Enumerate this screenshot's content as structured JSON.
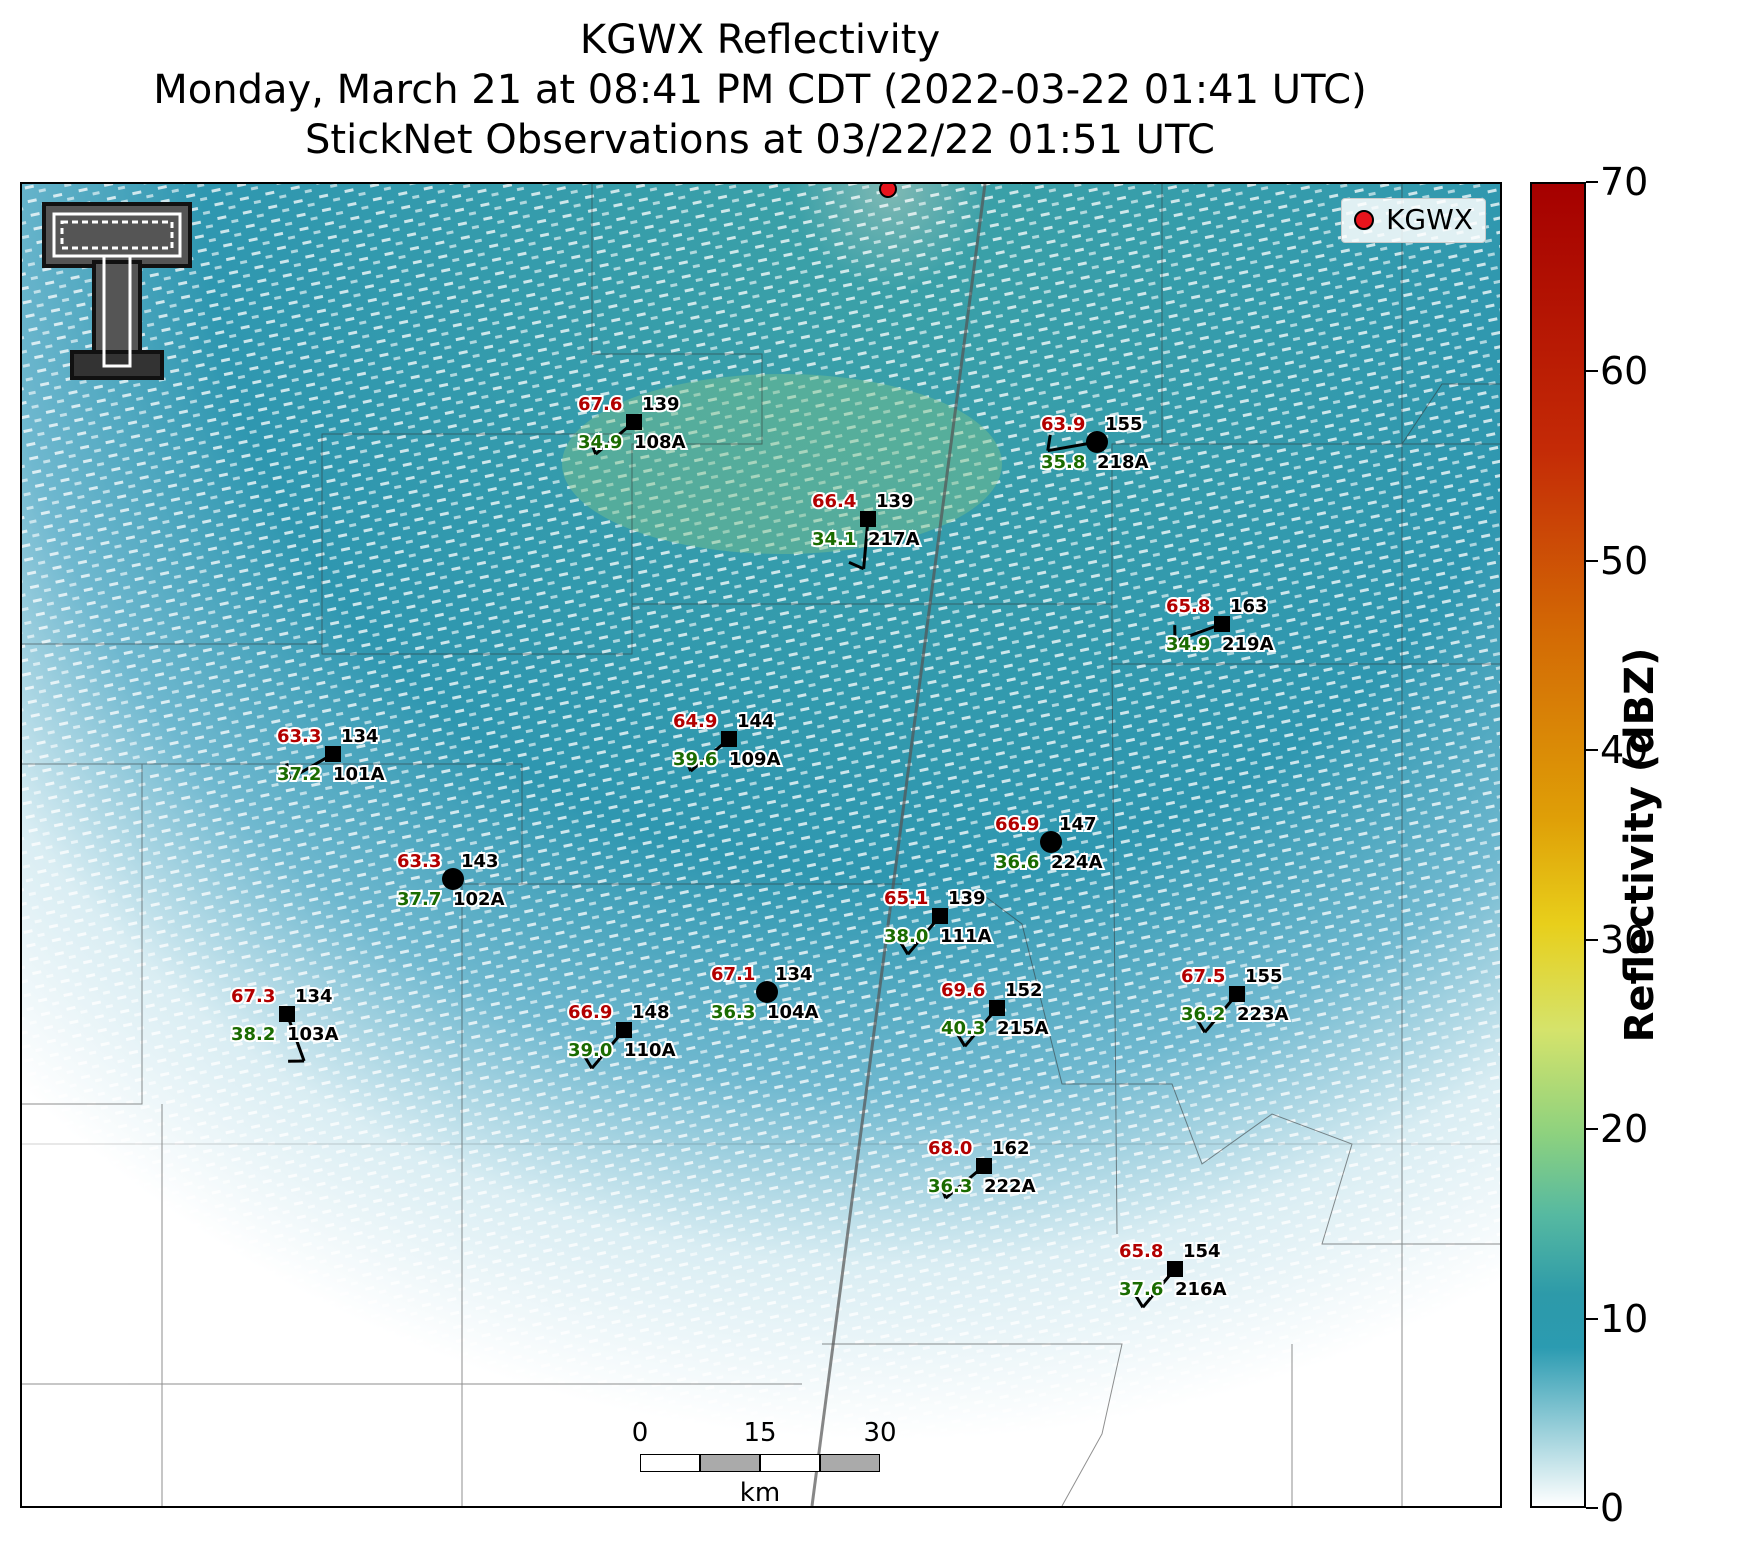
{
  "title": {
    "line1": "KGWX Reflectivity",
    "line2": "Monday, March 21 at 08:41 PM CDT (2022-03-22 01:41 UTC)",
    "line3": "StickNet Observations at 03/22/22 01:51 UTC"
  },
  "legend": {
    "label": "KGWX",
    "marker_color": "#e8141c"
  },
  "colorbar": {
    "label": "Reflectivity (dBZ)",
    "ticks": [
      "0",
      "10",
      "20",
      "30",
      "40",
      "50",
      "60",
      "70"
    ],
    "range": [
      0,
      70
    ]
  },
  "scalebar": {
    "labels": [
      "0",
      "15",
      "30"
    ],
    "unit": "km"
  },
  "logo": {
    "name": "texas-tech-double-t-logo"
  },
  "stations": [
    {
      "id": "108A",
      "temp": "67.6",
      "dew": "34.9",
      "code": "139",
      "marker": "square"
    },
    {
      "id": "218A",
      "temp": "63.9",
      "dew": "35.8",
      "code": "155",
      "marker": "circle"
    },
    {
      "id": "217A",
      "temp": "66.4",
      "dew": "34.1",
      "code": "139",
      "marker": "square"
    },
    {
      "id": "219A",
      "temp": "65.8",
      "dew": "34.9",
      "code": "163",
      "marker": "square"
    },
    {
      "id": "101A",
      "temp": "63.3",
      "dew": "37.2",
      "code": "134",
      "marker": "square"
    },
    {
      "id": "109A",
      "temp": "64.9",
      "dew": "39.6",
      "code": "144",
      "marker": "square"
    },
    {
      "id": "224A",
      "temp": "66.9",
      "dew": "36.6",
      "code": "147",
      "marker": "circle"
    },
    {
      "id": "102A",
      "temp": "63.3",
      "dew": "37.7",
      "code": "143",
      "marker": "circle"
    },
    {
      "id": "111A",
      "temp": "65.1",
      "dew": "38.0",
      "code": "139",
      "marker": "square"
    },
    {
      "id": "104A",
      "temp": "67.1",
      "dew": "36.3",
      "code": "134",
      "marker": "circle"
    },
    {
      "id": "103A",
      "temp": "67.3",
      "dew": "38.2",
      "code": "134",
      "marker": "square"
    },
    {
      "id": "110A",
      "temp": "66.9",
      "dew": "39.0",
      "code": "148",
      "marker": "square"
    },
    {
      "id": "215A",
      "temp": "69.6",
      "dew": "40.3",
      "code": "152",
      "marker": "square"
    },
    {
      "id": "223A",
      "temp": "67.5",
      "dew": "36.2",
      "code": "155",
      "marker": "square"
    },
    {
      "id": "222A",
      "temp": "68.0",
      "dew": "36.3",
      "code": "162",
      "marker": "square"
    },
    {
      "id": "216A",
      "temp": "65.8",
      "dew": "37.6",
      "code": "154",
      "marker": "square"
    }
  ]
}
